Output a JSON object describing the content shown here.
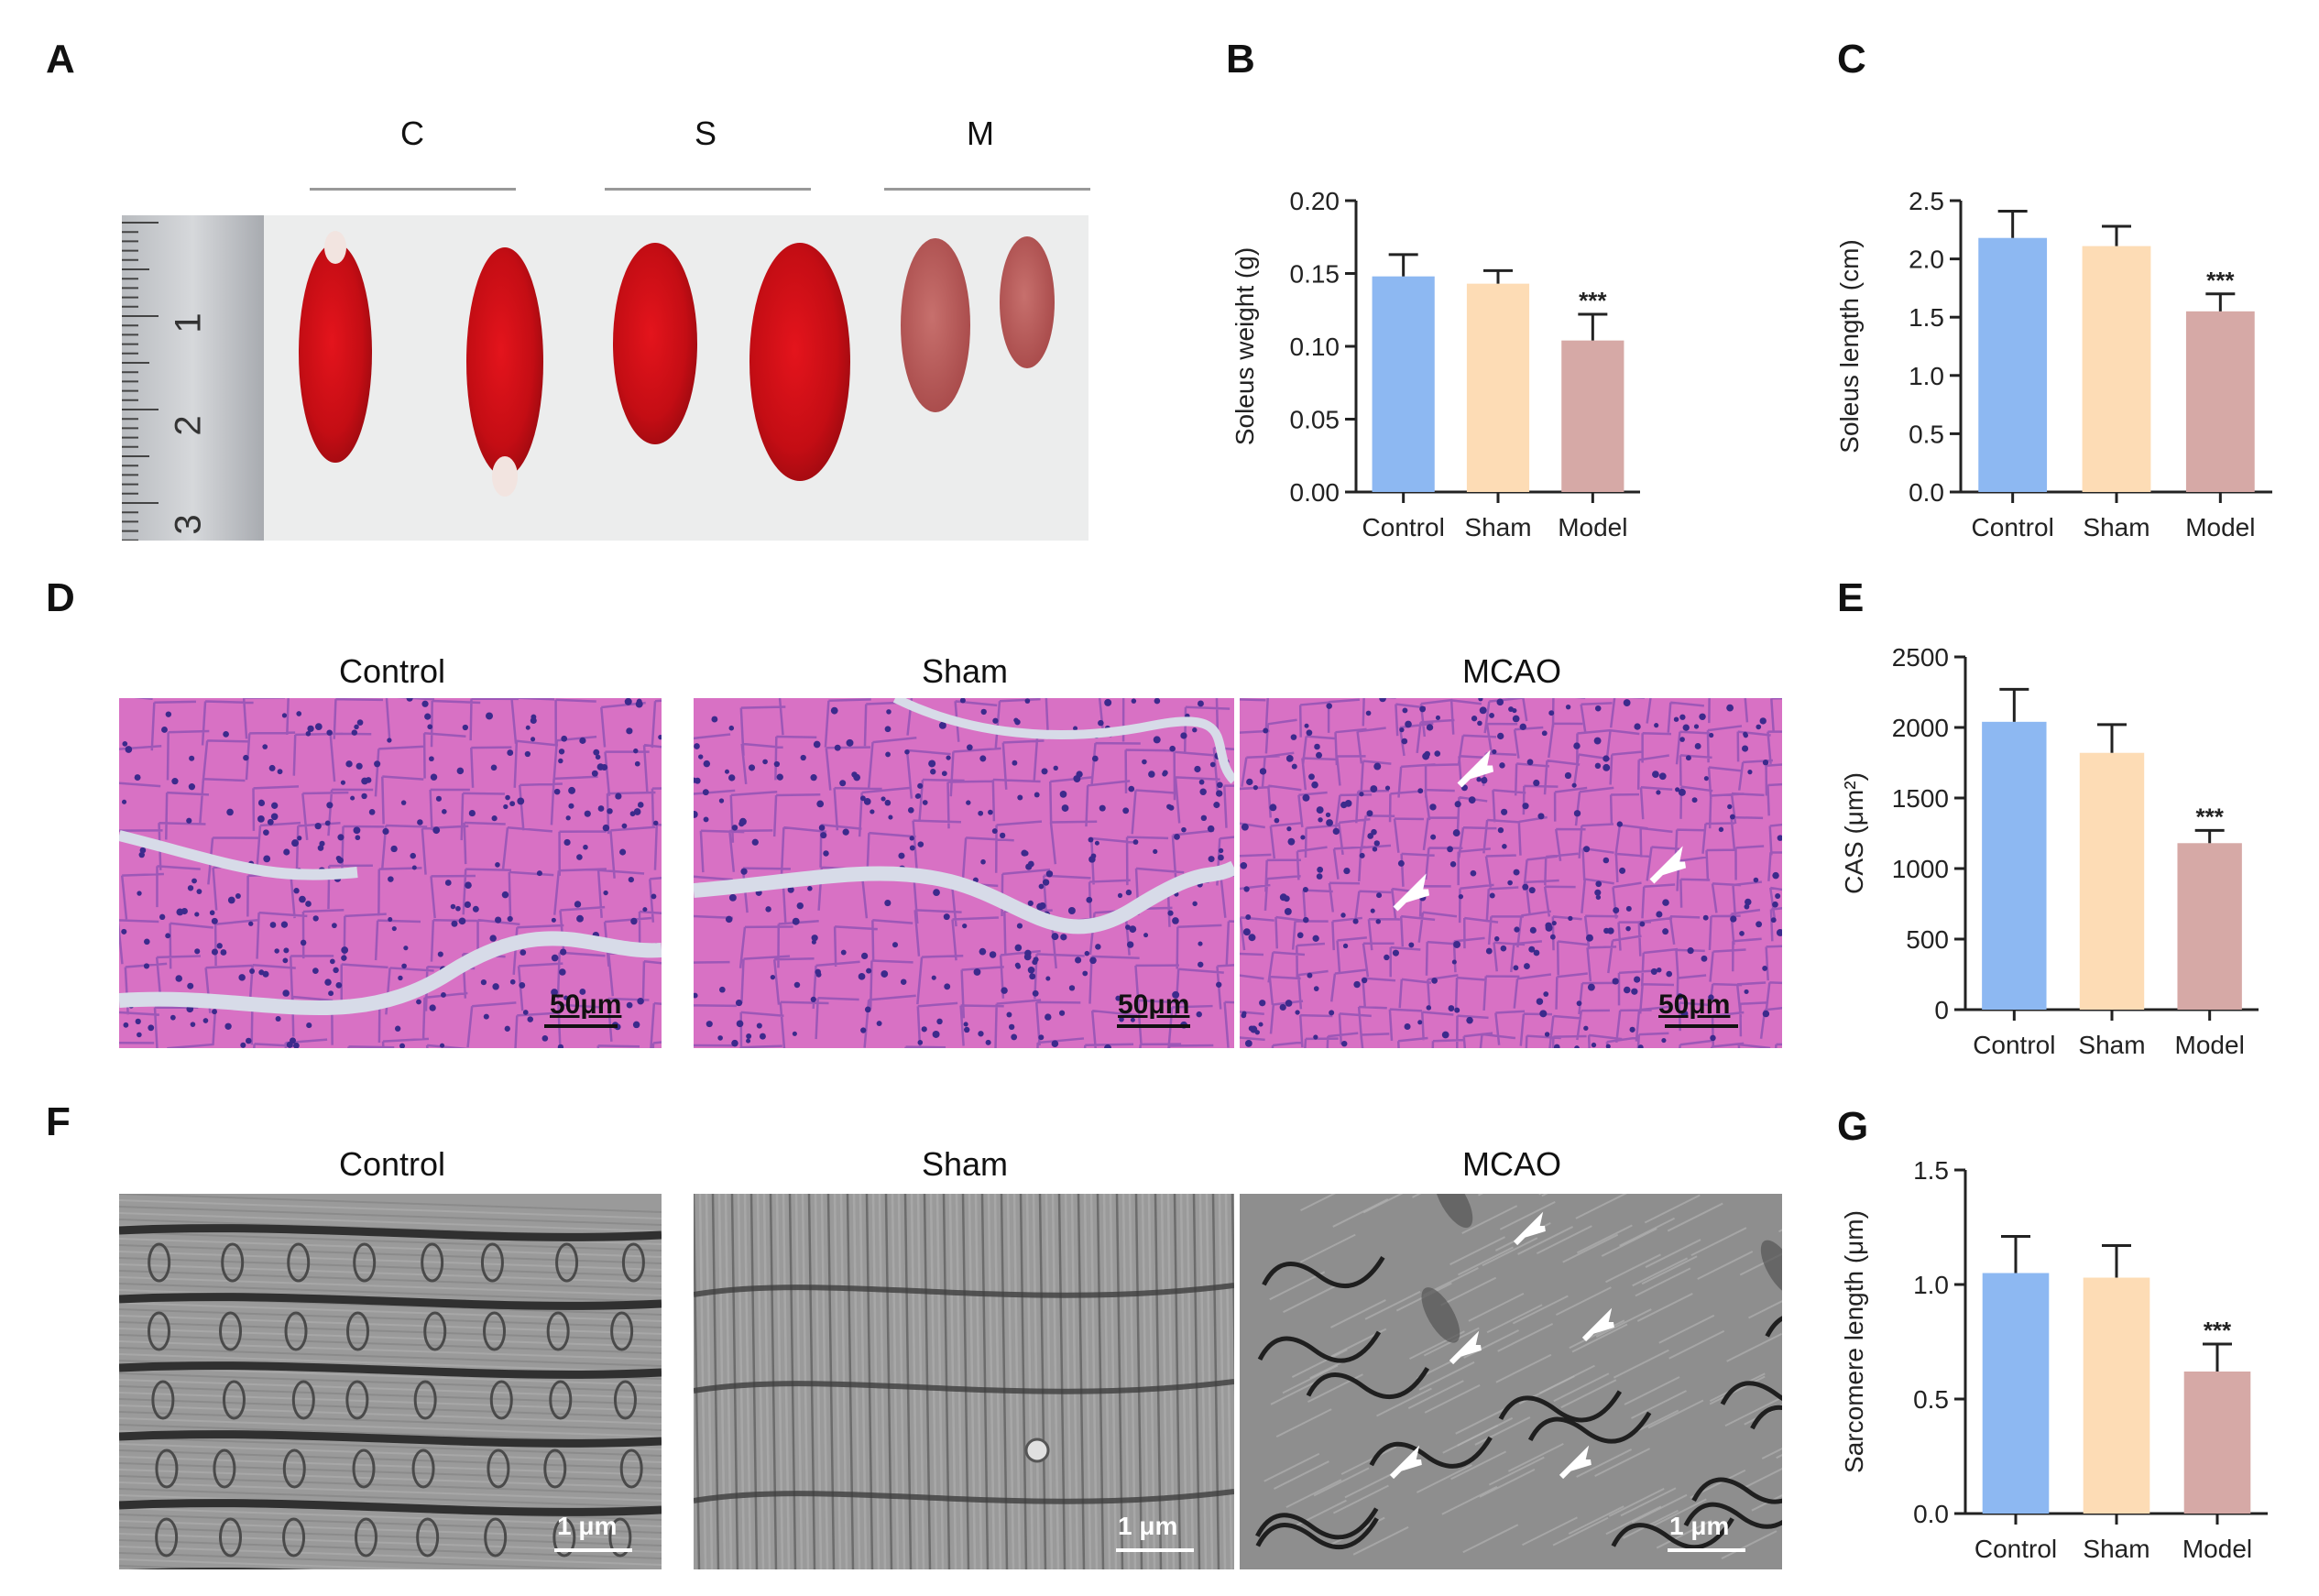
{
  "panels": {
    "A": {
      "letter": "A",
      "groups": [
        "C",
        "S",
        "M"
      ],
      "ruler_numbers": [
        "1",
        "2",
        "3"
      ]
    },
    "B": {
      "letter": "B"
    },
    "C": {
      "letter": "C"
    },
    "D": {
      "letter": "D",
      "titles": [
        "Control",
        "Sham",
        "MCAO"
      ],
      "scale_bar": "50μm"
    },
    "E": {
      "letter": "E"
    },
    "F": {
      "letter": "F",
      "titles": [
        "Control",
        "Sham",
        "MCAO"
      ],
      "scale_bar": "1 μm"
    },
    "G": {
      "letter": "G"
    }
  },
  "colors": {
    "control": "#8db8f2",
    "sham": "#fddcb5",
    "model": "#d6a9a6",
    "he_stain": "#d871c4",
    "em_gray": "#8a8a8a"
  },
  "chart_data": [
    {
      "id": "B",
      "type": "bar",
      "categories": [
        "Control",
        "Sham",
        "Model"
      ],
      "values": [
        0.148,
        0.143,
        0.104
      ],
      "errors": [
        0.015,
        0.009,
        0.018
      ],
      "significance": [
        "",
        "",
        "***"
      ],
      "ylabel": "Soleus weight (g)",
      "ylim": [
        0,
        0.2
      ],
      "yticks": [
        "0.00",
        "0.05",
        "0.10",
        "0.15",
        "0.20"
      ]
    },
    {
      "id": "C",
      "type": "bar",
      "categories": [
        "Control",
        "Sham",
        "Model"
      ],
      "values": [
        2.18,
        2.11,
        1.55
      ],
      "errors": [
        0.23,
        0.17,
        0.15
      ],
      "significance": [
        "",
        "",
        "***"
      ],
      "ylabel": "Soleus length (cm)",
      "ylim": [
        0,
        2.5
      ],
      "yticks": [
        "0.0",
        "0.5",
        "1.0",
        "1.5",
        "2.0",
        "2.5"
      ]
    },
    {
      "id": "E",
      "type": "bar",
      "categories": [
        "Control",
        "Sham",
        "Model"
      ],
      "values": [
        2040,
        1820,
        1180
      ],
      "errors": [
        230,
        200,
        90
      ],
      "significance": [
        "",
        "",
        "***"
      ],
      "ylabel": "CAS (μm²)",
      "ylim": [
        0,
        2500
      ],
      "yticks": [
        "0",
        "500",
        "1000",
        "1500",
        "2000",
        "2500"
      ]
    },
    {
      "id": "G",
      "type": "bar",
      "categories": [
        "Control",
        "Sham",
        "Model"
      ],
      "values": [
        1.05,
        1.03,
        0.62
      ],
      "errors": [
        0.16,
        0.14,
        0.12
      ],
      "significance": [
        "",
        "",
        "***"
      ],
      "ylabel": "Sarcomere length (μm)",
      "ylim": [
        0,
        1.5
      ],
      "yticks": [
        "0.0",
        "0.5",
        "1.0",
        "1.5"
      ]
    }
  ]
}
